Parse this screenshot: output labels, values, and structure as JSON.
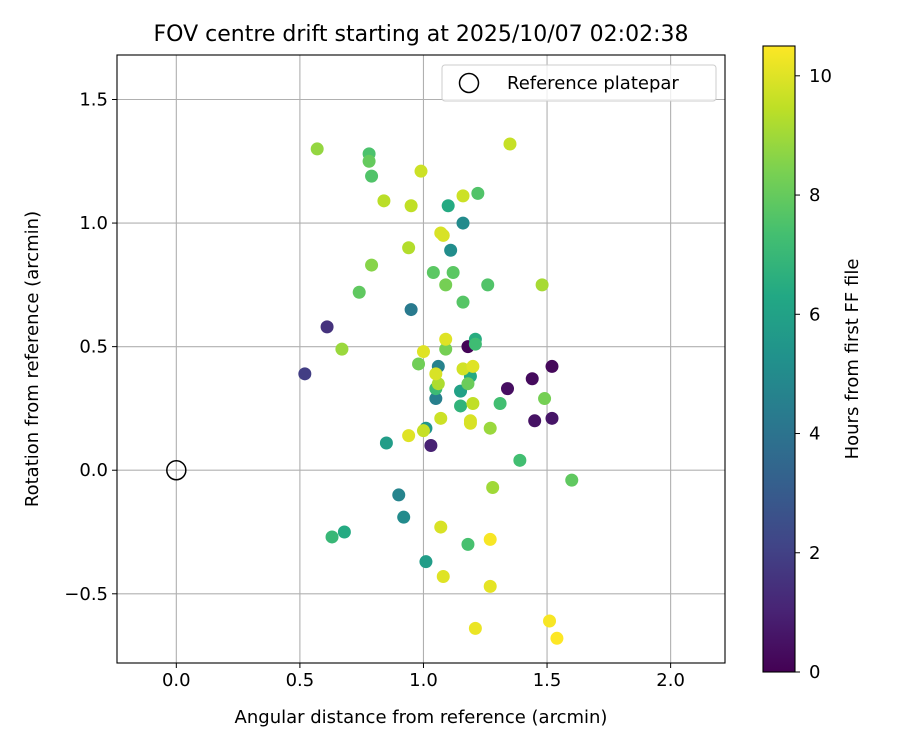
{
  "chart_data": {
    "type": "scatter",
    "title": "FOV centre drift starting at 2025/10/07 02:02:38",
    "xlabel": "Angular distance from reference (arcmin)",
    "ylabel": "Rotation from reference (arcmin)",
    "xlim": [
      -0.24,
      2.22
    ],
    "ylim": [
      -0.78,
      1.68
    ],
    "xticks": [
      0.0,
      0.5,
      1.0,
      1.5,
      2.0
    ],
    "xtick_labels": [
      "0.0",
      "0.5",
      "1.0",
      "1.5",
      "2.0"
    ],
    "yticks": [
      -0.5,
      0.0,
      0.5,
      1.0,
      1.5
    ],
    "ytick_labels": [
      "−0.5",
      "0.0",
      "0.5",
      "1.0",
      "1.5"
    ],
    "grid": true,
    "legend": {
      "position": "top-right",
      "label": "Reference platepar"
    },
    "reference_point": {
      "x": 0.0,
      "y": 0.0
    },
    "colorbar": {
      "label": "Hours from first FF file",
      "colormap": "viridis",
      "range": [
        0,
        10.5
      ],
      "ticks": [
        0,
        2,
        4,
        6,
        8,
        10
      ],
      "tick_labels": [
        "0",
        "2",
        "4",
        "6",
        "8",
        "10"
      ]
    },
    "points": [
      {
        "x": 1.18,
        "y": 0.5,
        "hours": 0.1
      },
      {
        "x": 1.52,
        "y": 0.42,
        "hours": 0.2
      },
      {
        "x": 1.44,
        "y": 0.37,
        "hours": 0.3
      },
      {
        "x": 1.34,
        "y": 0.33,
        "hours": 0.4
      },
      {
        "x": 1.45,
        "y": 0.2,
        "hours": 0.5
      },
      {
        "x": 1.52,
        "y": 0.21,
        "hours": 0.6
      },
      {
        "x": 1.03,
        "y": 0.1,
        "hours": 1.0
      },
      {
        "x": 0.61,
        "y": 0.58,
        "hours": 1.5
      },
      {
        "x": 0.52,
        "y": 0.39,
        "hours": 1.9
      },
      {
        "x": 0.95,
        "y": 0.65,
        "hours": 4.3
      },
      {
        "x": 1.05,
        "y": 0.29,
        "hours": 4.5
      },
      {
        "x": 1.06,
        "y": 0.42,
        "hours": 4.6
      },
      {
        "x": 0.9,
        "y": -0.1,
        "hours": 4.7
      },
      {
        "x": 0.92,
        "y": -0.19,
        "hours": 5.0
      },
      {
        "x": 1.16,
        "y": 1.0,
        "hours": 5.0
      },
      {
        "x": 1.11,
        "y": 0.89,
        "hours": 5.1
      },
      {
        "x": 1.01,
        "y": 0.17,
        "hours": 5.5
      },
      {
        "x": 0.85,
        "y": 0.11,
        "hours": 5.8
      },
      {
        "x": 1.01,
        "y": -0.37,
        "hours": 5.8
      },
      {
        "x": 1.15,
        "y": 0.32,
        "hours": 6.0
      },
      {
        "x": 1.19,
        "y": 0.38,
        "hours": 6.4
      },
      {
        "x": 0.68,
        "y": -0.25,
        "hours": 6.4
      },
      {
        "x": 1.1,
        "y": 1.07,
        "hours": 6.4
      },
      {
        "x": 1.21,
        "y": 0.53,
        "hours": 6.5
      },
      {
        "x": 1.15,
        "y": 0.26,
        "hours": 6.8
      },
      {
        "x": 0.63,
        "y": -0.27,
        "hours": 7.0
      },
      {
        "x": 1.05,
        "y": 0.33,
        "hours": 7.1
      },
      {
        "x": 1.21,
        "y": 0.51,
        "hours": 7.2
      },
      {
        "x": 1.31,
        "y": 0.27,
        "hours": 7.3
      },
      {
        "x": 1.39,
        "y": 0.04,
        "hours": 7.3
      },
      {
        "x": 1.18,
        "y": -0.3,
        "hours": 7.4
      },
      {
        "x": 0.78,
        "y": 1.28,
        "hours": 7.5
      },
      {
        "x": 0.79,
        "y": 1.19,
        "hours": 7.6
      },
      {
        "x": 1.22,
        "y": 1.12,
        "hours": 7.6
      },
      {
        "x": 1.26,
        "y": 0.75,
        "hours": 7.6
      },
      {
        "x": 1.16,
        "y": 0.68,
        "hours": 7.7
      },
      {
        "x": 1.04,
        "y": 0.8,
        "hours": 7.8
      },
      {
        "x": 1.12,
        "y": 0.8,
        "hours": 7.8
      },
      {
        "x": 0.74,
        "y": 0.72,
        "hours": 7.9
      },
      {
        "x": 1.6,
        "y": -0.04,
        "hours": 7.9
      },
      {
        "x": 0.78,
        "y": 1.25,
        "hours": 8.0
      },
      {
        "x": 1.18,
        "y": 0.35,
        "hours": 8.1
      },
      {
        "x": 0.98,
        "y": 0.43,
        "hours": 8.2
      },
      {
        "x": 1.09,
        "y": 0.75,
        "hours": 8.3
      },
      {
        "x": 1.09,
        "y": 0.49,
        "hours": 8.3
      },
      {
        "x": 1.49,
        "y": 0.29,
        "hours": 8.3
      },
      {
        "x": 0.79,
        "y": 0.83,
        "hours": 8.6
      },
      {
        "x": 0.57,
        "y": 1.3,
        "hours": 8.8
      },
      {
        "x": 0.67,
        "y": 0.49,
        "hours": 8.9
      },
      {
        "x": 1.27,
        "y": 0.17,
        "hours": 8.9
      },
      {
        "x": 1.28,
        "y": -0.07,
        "hours": 9.0
      },
      {
        "x": 1.48,
        "y": 0.75,
        "hours": 9.1
      },
      {
        "x": 1.06,
        "y": 0.35,
        "hours": 9.2
      },
      {
        "x": 0.94,
        "y": 0.9,
        "hours": 9.3
      },
      {
        "x": 0.84,
        "y": 1.09,
        "hours": 9.4
      },
      {
        "x": 0.95,
        "y": 1.07,
        "hours": 9.5
      },
      {
        "x": 1.2,
        "y": 0.27,
        "hours": 9.5
      },
      {
        "x": 1.35,
        "y": 1.32,
        "hours": 9.6
      },
      {
        "x": 1.0,
        "y": 0.16,
        "hours": 9.6
      },
      {
        "x": 1.16,
        "y": 1.11,
        "hours": 9.7
      },
      {
        "x": 1.07,
        "y": 0.21,
        "hours": 9.7
      },
      {
        "x": 0.99,
        "y": 1.21,
        "hours": 9.7
      },
      {
        "x": 1.16,
        "y": 0.41,
        "hours": 9.8
      },
      {
        "x": 1.05,
        "y": 0.39,
        "hours": 9.9
      },
      {
        "x": 1.19,
        "y": 0.2,
        "hours": 9.9
      },
      {
        "x": 1.07,
        "y": 0.96,
        "hours": 9.9
      },
      {
        "x": 1.08,
        "y": 0.95,
        "hours": 9.9
      },
      {
        "x": 1.19,
        "y": 0.19,
        "hours": 9.9
      },
      {
        "x": 1.07,
        "y": -0.23,
        "hours": 9.9
      },
      {
        "x": 1.09,
        "y": 0.53,
        "hours": 10.0
      },
      {
        "x": 1.2,
        "y": 0.42,
        "hours": 10.0
      },
      {
        "x": 1.0,
        "y": 0.48,
        "hours": 10.0
      },
      {
        "x": 0.94,
        "y": 0.14,
        "hours": 10.0
      },
      {
        "x": 1.08,
        "y": -0.43,
        "hours": 10.0
      },
      {
        "x": 1.27,
        "y": -0.47,
        "hours": 10.1
      },
      {
        "x": 1.21,
        "y": -0.64,
        "hours": 10.2
      },
      {
        "x": 1.27,
        "y": -0.28,
        "hours": 10.4
      },
      {
        "x": 1.51,
        "y": -0.61,
        "hours": 10.4
      },
      {
        "x": 1.54,
        "y": -0.68,
        "hours": 10.5
      }
    ]
  }
}
